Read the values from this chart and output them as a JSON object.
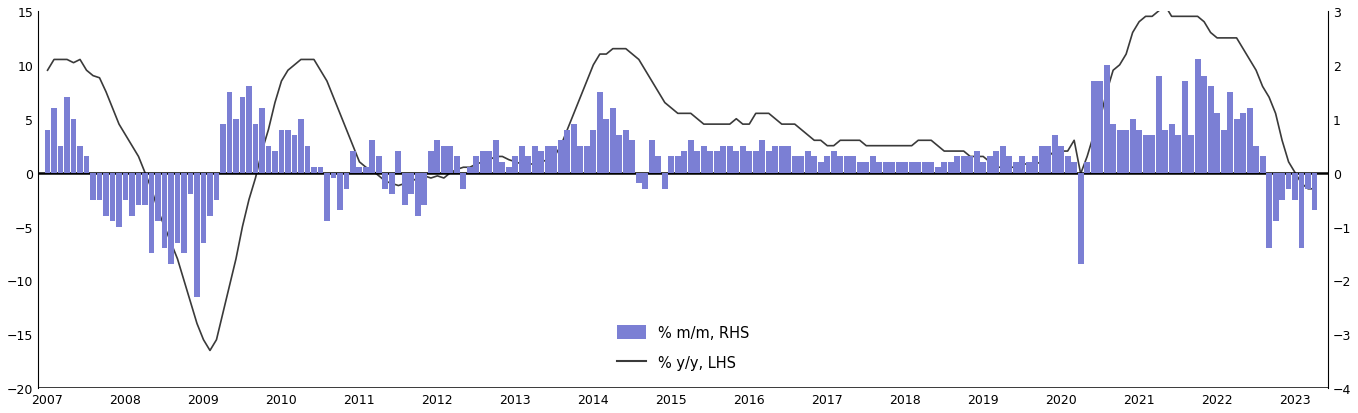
{
  "bar_color": "#7B7FD4",
  "line_color": "#3a3a3a",
  "lhs_ylim": [
    -20,
    15
  ],
  "rhs_ylim": [
    -4,
    3
  ],
  "lhs_yticks": [
    -20,
    -15,
    -10,
    -5,
    0,
    5,
    10,
    15
  ],
  "rhs_yticks": [
    -4,
    -3,
    -2,
    -1,
    0,
    1,
    2,
    3
  ],
  "xlabel_years": [
    2007,
    2008,
    2009,
    2010,
    2011,
    2012,
    2013,
    2014,
    2015,
    2016,
    2017,
    2018,
    2019,
    2020,
    2021,
    2022,
    2023
  ],
  "mom_values": [
    0.8,
    1.2,
    0.5,
    1.4,
    1.0,
    0.5,
    0.3,
    -0.5,
    -0.5,
    -0.8,
    -0.9,
    -1.0,
    -0.5,
    -0.8,
    -0.6,
    -0.6,
    -1.5,
    -0.9,
    -1.4,
    -1.7,
    -1.3,
    -1.5,
    -0.4,
    -2.3,
    -1.3,
    -0.8,
    -0.5,
    0.9,
    1.5,
    1.0,
    1.4,
    1.6,
    0.9,
    1.2,
    0.5,
    0.4,
    0.8,
    0.8,
    0.7,
    1.0,
    0.5,
    0.1,
    0.1,
    -0.9,
    -0.1,
    -0.7,
    -0.3,
    0.4,
    0.1,
    0.1,
    0.6,
    0.3,
    -0.3,
    -0.4,
    0.4,
    -0.6,
    -0.4,
    -0.8,
    -0.6,
    0.4,
    0.6,
    0.5,
    0.5,
    0.3,
    -0.3,
    0.1,
    0.3,
    0.4,
    0.4,
    0.6,
    0.2,
    0.1,
    0.3,
    0.5,
    0.3,
    0.5,
    0.4,
    0.5,
    0.5,
    0.6,
    0.8,
    0.9,
    0.5,
    0.5,
    0.8,
    1.5,
    1.0,
    1.2,
    0.7,
    0.8,
    0.6,
    -0.2,
    -0.3,
    0.6,
    0.3,
    -0.3,
    0.3,
    0.3,
    0.4,
    0.6,
    0.4,
    0.5,
    0.4,
    0.4,
    0.5,
    0.5,
    0.4,
    0.5,
    0.4,
    0.4,
    0.6,
    0.4,
    0.5,
    0.5,
    0.5,
    0.3,
    0.3,
    0.4,
    0.3,
    0.2,
    0.3,
    0.4,
    0.3,
    0.3,
    0.3,
    0.2,
    0.2,
    0.3,
    0.2,
    0.2,
    0.2,
    0.2,
    0.2,
    0.2,
    0.2,
    0.2,
    0.2,
    0.1,
    0.2,
    0.2,
    0.3,
    0.3,
    0.3,
    0.4,
    0.2,
    0.3,
    0.4,
    0.5,
    0.3,
    0.2,
    0.3,
    0.2,
    0.3,
    0.5,
    0.5,
    0.7,
    0.5,
    0.3,
    0.2,
    -1.7,
    0.2,
    1.7,
    1.7,
    2.0,
    0.9,
    0.8,
    0.8,
    1.0,
    0.8,
    0.7,
    0.7,
    1.8,
    0.8,
    0.9,
    0.7,
    1.7,
    0.7,
    2.1,
    1.8,
    1.6,
    1.1,
    0.8,
    1.5,
    1.0,
    1.1,
    1.2,
    0.5,
    0.3,
    -1.4,
    -0.9,
    -0.5,
    -0.3,
    -0.5,
    -1.4,
    -0.3,
    -0.7
  ],
  "yoy_values": [
    9.5,
    10.5,
    10.5,
    10.5,
    10.2,
    10.5,
    9.5,
    9.0,
    8.8,
    7.5,
    6.0,
    4.5,
    3.5,
    2.5,
    1.5,
    0.0,
    -1.5,
    -3.5,
    -5.0,
    -6.5,
    -8.0,
    -10.0,
    -12.0,
    -14.0,
    -15.5,
    -16.5,
    -15.5,
    -13.0,
    -10.5,
    -8.0,
    -5.0,
    -2.5,
    -0.5,
    2.0,
    4.0,
    6.5,
    8.5,
    9.5,
    10.0,
    10.5,
    10.5,
    10.5,
    9.5,
    8.5,
    7.0,
    5.5,
    4.0,
    2.5,
    1.0,
    0.5,
    0.2,
    -0.3,
    -0.8,
    -1.0,
    -1.2,
    -1.0,
    -0.8,
    -0.5,
    -0.3,
    -0.5,
    -0.3,
    -0.5,
    0.0,
    0.3,
    0.5,
    0.5,
    0.8,
    1.0,
    1.2,
    1.5,
    1.5,
    1.2,
    1.0,
    0.8,
    0.8,
    0.8,
    1.0,
    1.2,
    1.5,
    2.5,
    4.0,
    5.5,
    7.0,
    8.5,
    10.0,
    11.0,
    11.0,
    11.5,
    11.5,
    11.5,
    11.0,
    10.5,
    9.5,
    8.5,
    7.5,
    6.5,
    6.0,
    5.5,
    5.5,
    5.5,
    5.0,
    4.5,
    4.5,
    4.5,
    4.5,
    4.5,
    5.0,
    4.5,
    4.5,
    5.5,
    5.5,
    5.5,
    5.0,
    4.5,
    4.5,
    4.5,
    4.0,
    3.5,
    3.0,
    3.0,
    2.5,
    2.5,
    3.0,
    3.0,
    3.0,
    3.0,
    2.5,
    2.5,
    2.5,
    2.5,
    2.5,
    2.5,
    2.5,
    2.5,
    3.0,
    3.0,
    3.0,
    2.5,
    2.0,
    2.0,
    2.0,
    2.0,
    1.5,
    1.5,
    1.5,
    1.0,
    0.5,
    0.5,
    0.5,
    0.5,
    0.8,
    0.8,
    0.8,
    1.0,
    1.5,
    2.0,
    2.0,
    2.0,
    3.0,
    -0.1,
    1.5,
    3.5,
    5.0,
    7.5,
    9.5,
    10.0,
    11.0,
    13.0,
    14.0,
    14.5,
    14.5,
    15.0,
    15.5,
    14.5,
    14.5,
    14.5,
    14.5,
    14.5,
    14.0,
    13.0,
    12.5,
    12.5,
    12.5,
    12.5,
    11.5,
    10.5,
    9.5,
    8.0,
    7.0,
    5.5,
    3.0,
    1.0,
    0.0,
    -1.0,
    -1.5,
    -1.5
  ],
  "xmin": 2006.88,
  "xmax": 2023.42
}
